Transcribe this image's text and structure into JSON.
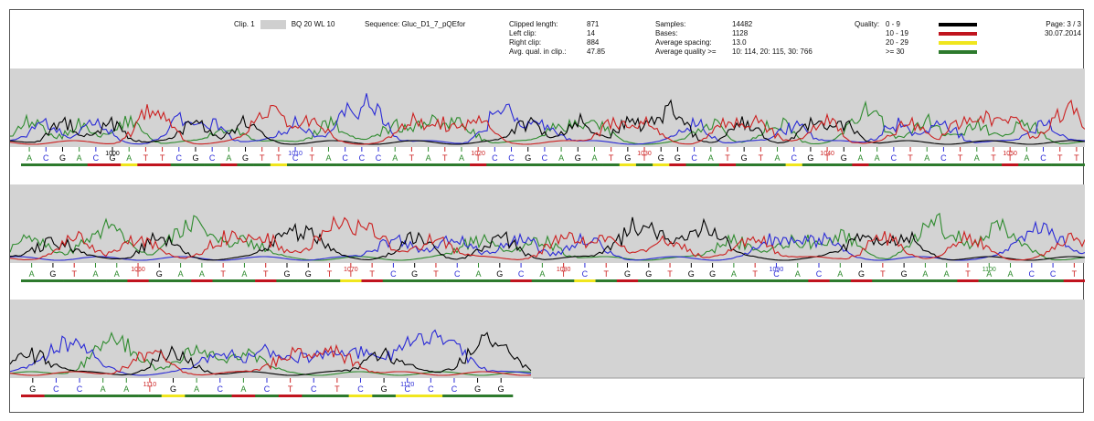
{
  "header": {
    "clip_label": "Clip. 1",
    "bq_wl": "BQ 20 WL 10",
    "sequence": "Sequence: Gluc_D1_7_pQEfor",
    "clip_stats_labels": [
      "Clipped length:",
      "Left clip:",
      "Right clip:",
      "Avg. qual. in clip.:"
    ],
    "clip_stats_values": [
      "871",
      "14",
      "884",
      "47.85"
    ],
    "sample_labels": [
      "Samples:",
      "Bases:",
      "Average spacing:",
      "Average quality >="
    ],
    "sample_values": [
      "14482",
      "1128",
      "13.0",
      "10: 114, 20: 115, 30: 766"
    ],
    "quality_title": "Quality:",
    "quality_ranges": [
      "0 - 9",
      "10 - 19",
      "20 - 29",
      ">= 30"
    ],
    "quality_colors": [
      "#000000",
      "#c0141e",
      "#f0e61e",
      "#2d7a2d"
    ],
    "page": "Page: 3 / 3",
    "date": "30.07.2014"
  },
  "colors": {
    "A": "#2e8b2e",
    "C": "#2a2ad6",
    "G": "#000000",
    "T": "#cc2020",
    "background": "#d3d3d3"
  },
  "chart_data": [
    {
      "type": "line",
      "title": "",
      "series_names": [
        "A",
        "C",
        "G",
        "T"
      ],
      "tick_labels": [
        "1000",
        "1010",
        "1020",
        "1030",
        "1040",
        "1050"
      ],
      "bases": [
        "A",
        "C",
        "G",
        "A",
        "C",
        "G",
        "A",
        "T",
        "T",
        "C",
        "G",
        "C",
        "A",
        "G",
        "T",
        "T",
        "C",
        "T",
        "A",
        "C",
        "C",
        "C",
        "A",
        "T",
        "A",
        "T",
        "A",
        "T",
        "C",
        "C",
        "G",
        "C",
        "A",
        "G",
        "A",
        "T",
        "G",
        "T",
        "G",
        "G",
        "C",
        "A",
        "T",
        "G",
        "T",
        "A",
        "C",
        "G",
        "T",
        "G",
        "A",
        "A",
        "C",
        "T",
        "A",
        "C",
        "T",
        "A",
        "T",
        "T",
        "A",
        "C",
        "T",
        "T"
      ],
      "quality": [
        "g",
        "g",
        "g",
        "g",
        "t",
        "t",
        "y",
        "t",
        "t",
        "g",
        "g",
        "g",
        "t",
        "g",
        "g",
        "y",
        "g",
        "g",
        "g",
        "g",
        "g",
        "g",
        "g",
        "g",
        "g",
        "g",
        "g",
        "t",
        "g",
        "g",
        "g",
        "g",
        "g",
        "g",
        "g",
        "g",
        "y",
        "g",
        "y",
        "t",
        "g",
        "g",
        "t",
        "g",
        "g",
        "g",
        "y",
        "g",
        "g",
        "g",
        "t",
        "g",
        "g",
        "g",
        "g",
        "g",
        "g",
        "g",
        "g",
        "t",
        "g",
        "g",
        "g",
        "g"
      ]
    },
    {
      "type": "line",
      "title": "",
      "series_names": [
        "A",
        "C",
        "G",
        "T"
      ],
      "tick_labels": [
        "1060",
        "1070",
        "1080",
        "1090",
        "1100"
      ],
      "bases": [
        "A",
        "G",
        "T",
        "A",
        "A",
        "T",
        "G",
        "A",
        "A",
        "T",
        "A",
        "T",
        "G",
        "G",
        "T",
        "T",
        "T",
        "C",
        "G",
        "T",
        "C",
        "A",
        "G",
        "C",
        "A",
        "T",
        "C",
        "T",
        "G",
        "G",
        "T",
        "G",
        "G",
        "A",
        "T",
        "C",
        "A",
        "C",
        "A",
        "G",
        "T",
        "G",
        "A",
        "A",
        "T",
        "A",
        "A",
        "C",
        "C",
        "T"
      ],
      "quality": [
        "g",
        "g",
        "g",
        "g",
        "g",
        "t",
        "g",
        "g",
        "t",
        "g",
        "g",
        "t",
        "g",
        "g",
        "g",
        "y",
        "t",
        "g",
        "g",
        "g",
        "g",
        "g",
        "g",
        "t",
        "g",
        "g",
        "y",
        "g",
        "t",
        "g",
        "g",
        "g",
        "g",
        "g",
        "g",
        "g",
        "g",
        "t",
        "g",
        "t",
        "g",
        "g",
        "g",
        "g",
        "t",
        "g",
        "g",
        "g",
        "g",
        "t"
      ]
    },
    {
      "type": "line",
      "title": "",
      "series_names": [
        "A",
        "C",
        "G",
        "T"
      ],
      "tick_labels": [
        "1110",
        "1120"
      ],
      "bases": [
        "G",
        "C",
        "C",
        "A",
        "A",
        "T",
        "G",
        "A",
        "C",
        "A",
        "C",
        "T",
        "C",
        "T",
        "C",
        "G",
        "C",
        "C",
        "C",
        "G",
        "G"
      ],
      "quality": [
        "t",
        "g",
        "g",
        "g",
        "g",
        "g",
        "y",
        "g",
        "g",
        "t",
        "g",
        "t",
        "g",
        "g",
        "y",
        "g",
        "y",
        "y",
        "g",
        "g",
        "g"
      ]
    }
  ]
}
